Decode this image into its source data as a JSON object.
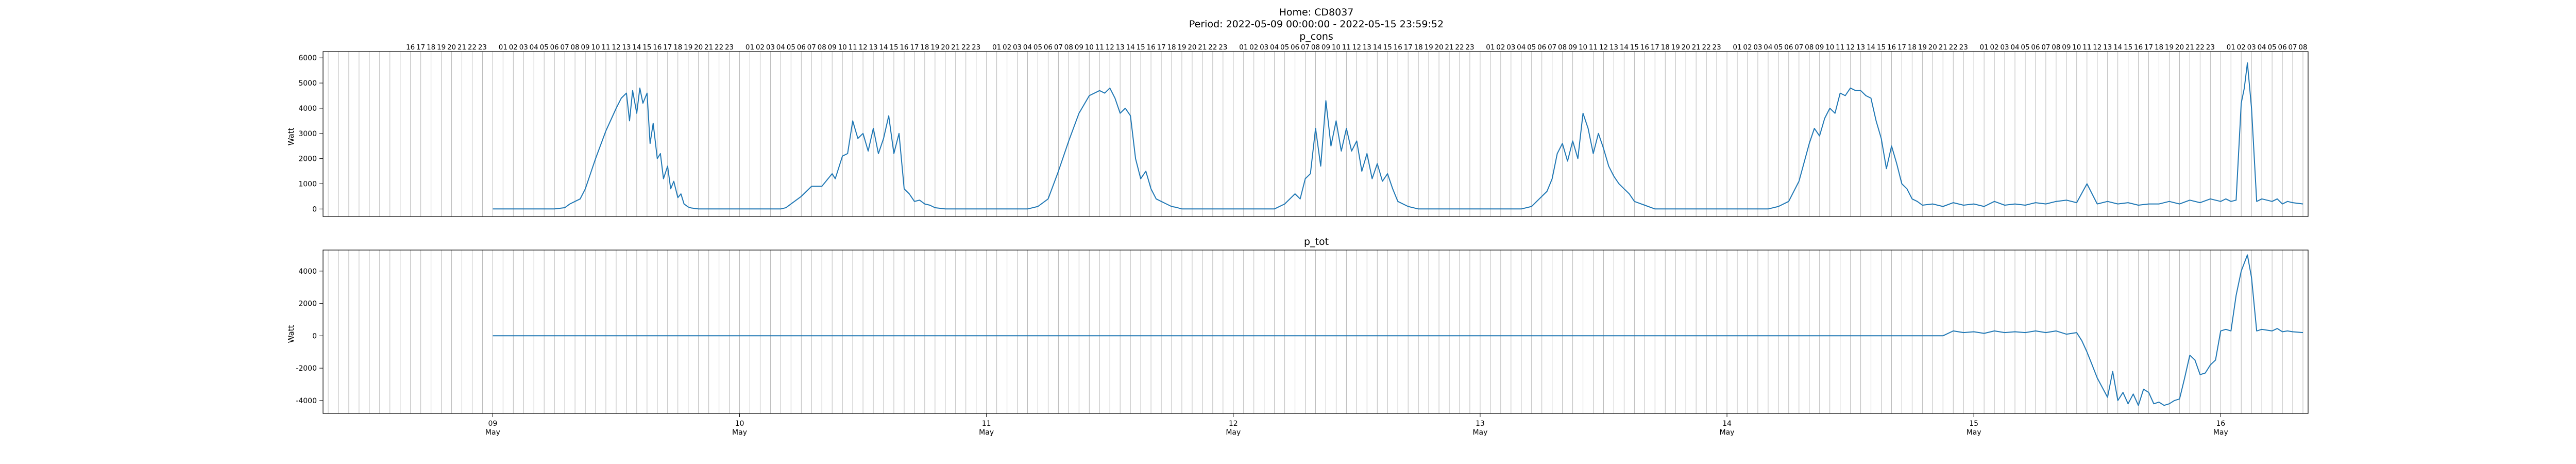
{
  "figure": {
    "title_line1": "Home: CD8037",
    "title_line2": "Period: 2022-05-09 00:00:00 - 2022-05-15 23:59:52"
  },
  "chart_data": [
    {
      "type": "line",
      "title": "p_cons",
      "xlabel": "",
      "ylabel": "Watt",
      "y_ticks": [
        0,
        1000,
        2000,
        3000,
        4000,
        5000,
        6000
      ],
      "ylim": [
        -300,
        6250
      ],
      "x_unit": "hours since 2022-05-09 00:00",
      "xlim": [
        -16.5,
        176.5
      ],
      "grid": "vertical hourly lines",
      "series_color": "#1f77b4",
      "series": [
        {
          "x": [
            0,
            6,
            7,
            7.5,
            8,
            8.5,
            9,
            10,
            11,
            12,
            12.5,
            13,
            13.3,
            13.6,
            14,
            14.3,
            14.6,
            15,
            15.3,
            15.6,
            16,
            16.3,
            16.6,
            17,
            17.3,
            17.6,
            18,
            18.3,
            18.6,
            19,
            19.3,
            20,
            24,
            28,
            28.5,
            29,
            30,
            31,
            32,
            33,
            33.3,
            34,
            34.5,
            35,
            35.5,
            36,
            36.5,
            37,
            37.5,
            38,
            38.5,
            39,
            39.5,
            40,
            40.5,
            41,
            41.5,
            42,
            42.5,
            43,
            44,
            48,
            52,
            53,
            54,
            55,
            56,
            57,
            58,
            59,
            59.5,
            60,
            60.5,
            61,
            61.5,
            62,
            62.5,
            63,
            63.5,
            64,
            64.5,
            65,
            65.5,
            66,
            66.5,
            67,
            68,
            72,
            76,
            77,
            78,
            78.5,
            79,
            79.5,
            80,
            80.5,
            81,
            81.5,
            82,
            82.5,
            83,
            83.5,
            84,
            84.5,
            85,
            85.5,
            86,
            86.5,
            87,
            87.5,
            88,
            89,
            90,
            96,
            100,
            101,
            102,
            102.5,
            103,
            103.5,
            104,
            104.5,
            105,
            105.5,
            106,
            106.5,
            107,
            107.5,
            108,
            108.5,
            109,
            109.5,
            110,
            110.5,
            111,
            112,
            113,
            120,
            124,
            125,
            126,
            127,
            128,
            128.5,
            129,
            129.5,
            130,
            130.5,
            131,
            131.5,
            132,
            132.5,
            133,
            133.5,
            134,
            134.5,
            135,
            135.5,
            136,
            136.5,
            137,
            137.5,
            138,
            138.5,
            139,
            140,
            141,
            142,
            143,
            144,
            145,
            146,
            147,
            148,
            149,
            150,
            151,
            152,
            153,
            154,
            155,
            156,
            157,
            158,
            159,
            160,
            161,
            162,
            163,
            164,
            165,
            166,
            167,
            168,
            168.5,
            169,
            169.5,
            170,
            170.3,
            170.6,
            171,
            171.5,
            172,
            172.5,
            173,
            173.5,
            174,
            174.5,
            175,
            176
          ],
          "y": [
            0,
            0,
            50,
            200,
            300,
            400,
            800,
            2000,
            3100,
            4000,
            4400,
            4600,
            3500,
            4700,
            3800,
            4800,
            4200,
            4600,
            2600,
            3400,
            2000,
            2200,
            1200,
            1700,
            800,
            1100,
            450,
            600,
            200,
            80,
            40,
            0,
            0,
            0,
            50,
            200,
            500,
            900,
            900,
            1400,
            1200,
            2100,
            2200,
            3500,
            2800,
            3000,
            2300,
            3200,
            2200,
            2800,
            3700,
            2200,
            3000,
            800,
            600,
            300,
            350,
            200,
            150,
            50,
            0,
            0,
            0,
            100,
            400,
            1500,
            2700,
            3800,
            4500,
            4700,
            4600,
            4800,
            4400,
            3800,
            4000,
            3700,
            2000,
            1200,
            1500,
            800,
            400,
            300,
            200,
            100,
            60,
            0,
            0,
            0,
            0,
            200,
            600,
            400,
            1200,
            1400,
            3200,
            1700,
            4300,
            2500,
            3500,
            2300,
            3200,
            2300,
            2700,
            1500,
            2200,
            1200,
            1800,
            1100,
            1400,
            800,
            300,
            100,
            0,
            0,
            0,
            100,
            500,
            700,
            1200,
            2200,
            2600,
            1900,
            2700,
            2000,
            3800,
            3200,
            2200,
            3000,
            2400,
            1700,
            1300,
            1000,
            800,
            600,
            300,
            150,
            0,
            0,
            0,
            100,
            300,
            1100,
            2600,
            3200,
            2900,
            3600,
            4000,
            3800,
            4600,
            4500,
            4800,
            4700,
            4700,
            4500,
            4400,
            3500,
            2800,
            1600,
            2500,
            1800,
            1000,
            800,
            400,
            300,
            150,
            200,
            100,
            250,
            150,
            200,
            100,
            300,
            150,
            200,
            150,
            250,
            200,
            300,
            350,
            250,
            1000,
            200,
            300,
            200,
            250,
            150,
            200,
            200,
            300,
            200,
            350,
            250,
            400,
            300,
            400,
            300,
            350,
            4200,
            4800,
            5800,
            4000,
            300,
            400,
            350,
            300,
            400,
            200,
            300,
            250,
            200
          ]
        }
      ]
    },
    {
      "type": "line",
      "title": "p_tot",
      "xlabel": "",
      "ylabel": "Watt",
      "y_ticks": [
        -4000,
        -2000,
        0,
        2000,
        4000
      ],
      "ylim": [
        -4800,
        5300
      ],
      "x_unit": "hours since 2022-05-09 00:00",
      "xlim": [
        -16.5,
        176.5
      ],
      "x_tick_labels": [
        "09\nMay",
        "10\nMay",
        "11\nMay",
        "12\nMay",
        "13\nMay",
        "14\nMay",
        "15\nMay",
        "16\nMay"
      ],
      "x_ticks": [
        0,
        24,
        48,
        72,
        96,
        120,
        144,
        168
      ],
      "grid": "vertical hourly lines",
      "series_color": "#1f77b4",
      "series": [
        {
          "x": [
            0,
            141,
            142,
            143,
            144,
            145,
            146,
            147,
            148,
            149,
            150,
            151,
            152,
            153,
            154,
            154.5,
            155,
            155.5,
            156,
            156.5,
            157,
            157.5,
            158,
            158.5,
            159,
            159.5,
            160,
            160.5,
            161,
            161.5,
            162,
            162.5,
            163,
            163.5,
            164,
            164.5,
            165,
            165.5,
            166,
            166.5,
            167,
            167.5,
            168,
            168.5,
            169,
            169.5,
            170,
            170.3,
            170.6,
            171,
            171.5,
            172,
            172.5,
            173,
            173.5,
            174,
            174.5,
            175,
            176
          ],
          "y": [
            0,
            0,
            300,
            200,
            250,
            150,
            300,
            200,
            250,
            200,
            300,
            200,
            300,
            100,
            200,
            -300,
            -1000,
            -1800,
            -2600,
            -3200,
            -3800,
            -2200,
            -4000,
            -3500,
            -4200,
            -3600,
            -4300,
            -3300,
            -3500,
            -4200,
            -4100,
            -4300,
            -4200,
            -4000,
            -3900,
            -2600,
            -1200,
            -1500,
            -2400,
            -2300,
            -1800,
            -1500,
            300,
            400,
            300,
            2500,
            4000,
            4500,
            5000,
            3600,
            300,
            400,
            350,
            300,
            450,
            250,
            300,
            250,
            200
          ]
        }
      ]
    }
  ],
  "hour_labels": [
    "16",
    "17",
    "18",
    "19",
    "20",
    "21",
    "22",
    "23",
    "",
    "01",
    "02",
    "03",
    "04",
    "05",
    "06",
    "07",
    "08",
    "09",
    "10",
    "11",
    "12",
    "13",
    "14",
    "15",
    "16",
    "17",
    "18",
    "19",
    "20",
    "21",
    "22",
    "23"
  ]
}
